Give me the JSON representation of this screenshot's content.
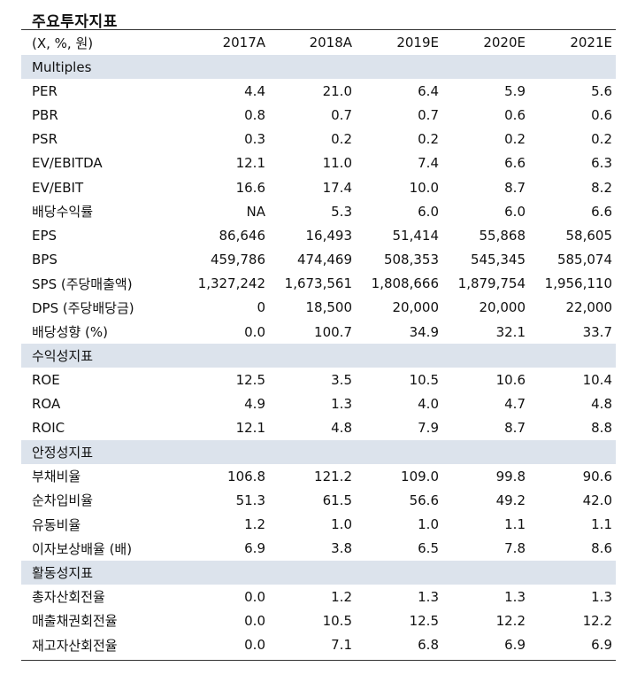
{
  "title": "주요투자지표",
  "header": {
    "unit": "(X, %, 원)",
    "years": [
      "2017A",
      "2018A",
      "2019E",
      "2020E",
      "2021E"
    ]
  },
  "sections": [
    {
      "name": "Multiples",
      "rows": [
        {
          "label": "PER",
          "values": [
            "4.4",
            "21.0",
            "6.4",
            "5.9",
            "5.6"
          ]
        },
        {
          "label": "PBR",
          "values": [
            "0.8",
            "0.7",
            "0.7",
            "0.6",
            "0.6"
          ]
        },
        {
          "label": "PSR",
          "values": [
            "0.3",
            "0.2",
            "0.2",
            "0.2",
            "0.2"
          ]
        },
        {
          "label": "EV/EBITDA",
          "values": [
            "12.1",
            "11.0",
            "7.4",
            "6.6",
            "6.3"
          ]
        },
        {
          "label": "EV/EBIT",
          "values": [
            "16.6",
            "17.4",
            "10.0",
            "8.7",
            "8.2"
          ]
        },
        {
          "label": "배당수익률",
          "values": [
            "NA",
            "5.3",
            "6.0",
            "6.0",
            "6.6"
          ]
        },
        {
          "label": "EPS",
          "values": [
            "86,646",
            "16,493",
            "51,414",
            "55,868",
            "58,605"
          ]
        },
        {
          "label": "BPS",
          "values": [
            "459,786",
            "474,469",
            "508,353",
            "545,345",
            "585,074"
          ]
        },
        {
          "label": "SPS (주당매출액)",
          "values": [
            "1,327,242",
            "1,673,561",
            "1,808,666",
            "1,879,754",
            "1,956,110"
          ]
        },
        {
          "label": "DPS (주당배당금)",
          "values": [
            "0",
            "18,500",
            "20,000",
            "20,000",
            "22,000"
          ]
        },
        {
          "label": "배당성향 (%)",
          "values": [
            "0.0",
            "100.7",
            "34.9",
            "32.1",
            "33.7"
          ]
        }
      ]
    },
    {
      "name": "수익성지표",
      "rows": [
        {
          "label": "ROE",
          "values": [
            "12.5",
            "3.5",
            "10.5",
            "10.6",
            "10.4"
          ]
        },
        {
          "label": "ROA",
          "values": [
            "4.9",
            "1.3",
            "4.0",
            "4.7",
            "4.8"
          ]
        },
        {
          "label": "ROIC",
          "values": [
            "12.1",
            "4.8",
            "7.9",
            "8.7",
            "8.8"
          ]
        }
      ]
    },
    {
      "name": "안정성지표",
      "rows": [
        {
          "label": "부채비율",
          "values": [
            "106.8",
            "121.2",
            "109.0",
            "99.8",
            "90.6"
          ]
        },
        {
          "label": "순차입비율",
          "values": [
            "51.3",
            "61.5",
            "56.6",
            "49.2",
            "42.0"
          ]
        },
        {
          "label": "유동비율",
          "values": [
            "1.2",
            "1.0",
            "1.0",
            "1.1",
            "1.1"
          ]
        },
        {
          "label": "이자보상배율 (배)",
          "values": [
            "6.9",
            "3.8",
            "6.5",
            "7.8",
            "8.6"
          ]
        }
      ]
    },
    {
      "name": "활동성지표",
      "rows": [
        {
          "label": "총자산회전율",
          "values": [
            "0.0",
            "1.2",
            "1.3",
            "1.3",
            "1.3"
          ]
        },
        {
          "label": "매출채권회전율",
          "values": [
            "0.0",
            "10.5",
            "12.5",
            "12.2",
            "12.2"
          ]
        },
        {
          "label": "재고자산회전율",
          "values": [
            "0.0",
            "7.1",
            "6.8",
            "6.9",
            "6.9"
          ]
        }
      ]
    }
  ]
}
